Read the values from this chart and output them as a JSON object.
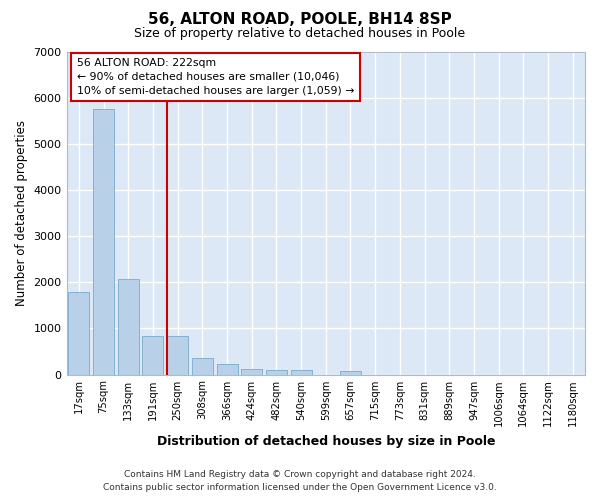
{
  "title1": "56, ALTON ROAD, POOLE, BH14 8SP",
  "title2": "Size of property relative to detached houses in Poole",
  "xlabel": "Distribution of detached houses by size in Poole",
  "ylabel": "Number of detached properties",
  "categories": [
    "17sqm",
    "75sqm",
    "133sqm",
    "191sqm",
    "250sqm",
    "308sqm",
    "366sqm",
    "424sqm",
    "482sqm",
    "540sqm",
    "599sqm",
    "657sqm",
    "715sqm",
    "773sqm",
    "831sqm",
    "889sqm",
    "947sqm",
    "1006sqm",
    "1064sqm",
    "1122sqm",
    "1180sqm"
  ],
  "values": [
    1780,
    5750,
    2060,
    830,
    830,
    360,
    230,
    115,
    100,
    100,
    0,
    75,
    0,
    0,
    0,
    0,
    0,
    0,
    0,
    0,
    0
  ],
  "bar_color": "#b8d0e8",
  "bar_edge_color": "#7aaacc",
  "vline_color": "#cc0000",
  "vline_pos": 3.58,
  "annotation_text": "56 ALTON ROAD: 222sqm\n← 90% of detached houses are smaller (10,046)\n10% of semi-detached houses are larger (1,059) →",
  "annotation_box_color": "#ffffff",
  "annotation_box_edge": "#cc0000",
  "ylim": [
    0,
    7000
  ],
  "yticks": [
    0,
    1000,
    2000,
    3000,
    4000,
    5000,
    6000,
    7000
  ],
  "fig_bg_color": "#ffffff",
  "plot_bg_color": "#dce8f5",
  "grid_color": "#ffffff",
  "footnote1": "Contains HM Land Registry data © Crown copyright and database right 2024.",
  "footnote2": "Contains public sector information licensed under the Open Government Licence v3.0."
}
